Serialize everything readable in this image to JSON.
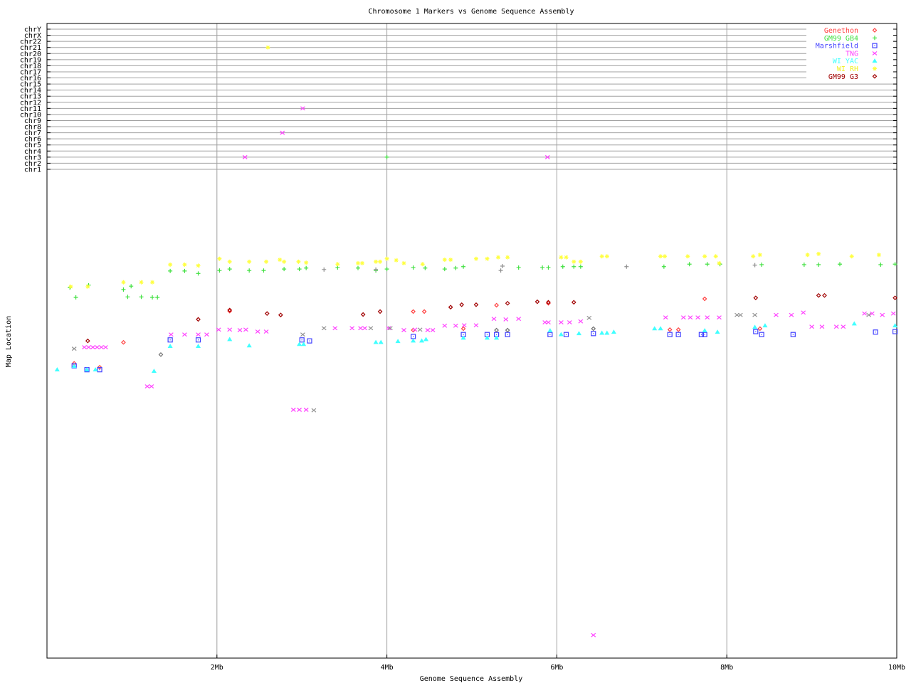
{
  "chart_data": {
    "type": "scatter",
    "title": "Chromosome 1 Markers vs Genome Sequence Assembly",
    "xlabel": "Genome Sequence Assembly",
    "ylabel": "Map Location",
    "xlim": [
      0,
      10
    ],
    "x_unit": "Mb",
    "x_ticks": [
      {
        "value": 2,
        "label": "2Mb"
      },
      {
        "value": 4,
        "label": "4Mb"
      },
      {
        "value": 6,
        "label": "6Mb"
      },
      {
        "value": 8,
        "label": "8Mb"
      },
      {
        "value": 10,
        "label": "10Mb"
      }
    ],
    "chromosome_ticks": [
      "chrY",
      "chrX",
      "chr22",
      "chr21",
      "chr20",
      "chr19",
      "chr18",
      "chr17",
      "chr16",
      "chr15",
      "chr14",
      "chr13",
      "chr12",
      "chr11",
      "chr10",
      "chr9",
      "chr8",
      "chr7",
      "chr6",
      "chr5",
      "chr4",
      "chr3",
      "chr2",
      "chr1"
    ],
    "map_location_range": [
      0,
      100
    ],
    "grid": true,
    "legend_position": "top-right",
    "series": [
      {
        "name": "Genethon",
        "color": "#ff4040",
        "marker": "diamond",
        "points": [
          [
            0.32,
            39.7
          ],
          [
            0.62,
            40.5
          ],
          [
            0.9,
            35.4
          ],
          [
            2.15,
            29.0
          ],
          [
            4.31,
            32.9
          ],
          [
            4.31,
            29.1
          ],
          [
            4.44,
            29.1
          ],
          [
            4.9,
            32.6
          ],
          [
            5.29,
            27.8
          ],
          [
            5.9,
            27.4
          ],
          [
            7.33,
            32.8
          ],
          [
            7.43,
            32.8
          ],
          [
            7.74,
            26.5
          ],
          [
            8.39,
            32.6
          ]
        ],
        "other_chromosomes": []
      },
      {
        "name": "GM99 GB4",
        "color": "#40e040",
        "marker": "plus",
        "points": [
          [
            0.27,
            24.2
          ],
          [
            0.34,
            26.2
          ],
          [
            0.49,
            23.7
          ],
          [
            0.9,
            24.6
          ],
          [
            0.95,
            26.1
          ],
          [
            0.99,
            23.9
          ],
          [
            1.11,
            26.1
          ],
          [
            1.24,
            26.2
          ],
          [
            1.3,
            26.2
          ],
          [
            1.45,
            20.8
          ],
          [
            1.62,
            20.8
          ],
          [
            1.78,
            21.3
          ],
          [
            2.03,
            20.7
          ],
          [
            2.15,
            20.4
          ],
          [
            2.38,
            20.7
          ],
          [
            2.55,
            20.7
          ],
          [
            2.79,
            20.4
          ],
          [
            2.97,
            20.4
          ],
          [
            3.05,
            20.2
          ],
          [
            3.42,
            20.1
          ],
          [
            3.66,
            20.2
          ],
          [
            3.87,
            20.7
          ],
          [
            4.0,
            20.4
          ],
          [
            4.31,
            20.1
          ],
          [
            4.45,
            20.2
          ],
          [
            4.68,
            20.4
          ],
          [
            4.81,
            20.2
          ],
          [
            4.9,
            19.9
          ],
          [
            5.55,
            20.1
          ],
          [
            5.83,
            20.1
          ],
          [
            5.9,
            20.1
          ],
          [
            6.07,
            19.9
          ],
          [
            6.2,
            19.9
          ],
          [
            6.28,
            19.9
          ],
          [
            7.26,
            19.9
          ],
          [
            7.56,
            19.4
          ],
          [
            7.77,
            19.4
          ],
          [
            7.92,
            19.4
          ],
          [
            8.41,
            19.5
          ],
          [
            8.91,
            19.5
          ],
          [
            9.08,
            19.5
          ],
          [
            9.33,
            19.4
          ],
          [
            9.81,
            19.5
          ],
          [
            9.98,
            19.4
          ]
        ],
        "other_chromosomes": [
          {
            "x": 4.0,
            "chr": "chr3"
          }
        ]
      },
      {
        "name": "Marshfield",
        "color": "#4040ff",
        "marker": "square",
        "points": [
          [
            0.32,
            40.2
          ],
          [
            0.47,
            41.0
          ],
          [
            0.62,
            41.0
          ],
          [
            1.45,
            34.9
          ],
          [
            1.78,
            34.9
          ],
          [
            3.0,
            34.9
          ],
          [
            3.09,
            35.1
          ],
          [
            4.31,
            34.2
          ],
          [
            4.9,
            33.8
          ],
          [
            5.18,
            33.8
          ],
          [
            5.29,
            33.8
          ],
          [
            5.42,
            33.8
          ],
          [
            5.92,
            33.8
          ],
          [
            6.11,
            33.8
          ],
          [
            6.43,
            33.6
          ],
          [
            7.33,
            33.8
          ],
          [
            7.43,
            33.8
          ],
          [
            7.7,
            33.8
          ],
          [
            7.74,
            33.8
          ],
          [
            8.34,
            33.2
          ],
          [
            8.41,
            33.8
          ],
          [
            8.78,
            33.8
          ],
          [
            9.75,
            33.3
          ],
          [
            9.98,
            33.2
          ]
        ],
        "other_chromosomes": []
      },
      {
        "name": "TNG",
        "color": "#ff40ff",
        "marker": "cross",
        "points": [
          [
            0.44,
            36.4
          ],
          [
            0.49,
            36.4
          ],
          [
            0.54,
            36.4
          ],
          [
            0.59,
            36.4
          ],
          [
            0.64,
            36.4
          ],
          [
            0.69,
            36.4
          ],
          [
            1.18,
            44.4
          ],
          [
            1.23,
            44.4
          ],
          [
            1.46,
            33.8
          ],
          [
            1.62,
            33.8
          ],
          [
            1.78,
            33.8
          ],
          [
            1.88,
            33.8
          ],
          [
            2.02,
            32.8
          ],
          [
            2.15,
            32.8
          ],
          [
            2.27,
            32.9
          ],
          [
            2.34,
            32.8
          ],
          [
            2.48,
            33.2
          ],
          [
            2.58,
            33.2
          ],
          [
            2.9,
            49.2
          ],
          [
            2.97,
            49.2
          ],
          [
            3.05,
            49.2
          ],
          [
            3.39,
            32.5
          ],
          [
            3.59,
            32.5
          ],
          [
            3.69,
            32.5
          ],
          [
            3.74,
            32.5
          ],
          [
            4.02,
            32.5
          ],
          [
            4.2,
            32.9
          ],
          [
            4.33,
            32.8
          ],
          [
            4.48,
            32.9
          ],
          [
            4.54,
            32.9
          ],
          [
            4.68,
            32.0
          ],
          [
            4.81,
            32.0
          ],
          [
            4.91,
            31.9
          ],
          [
            5.05,
            31.9
          ],
          [
            5.26,
            30.6
          ],
          [
            5.4,
            30.7
          ],
          [
            5.55,
            30.6
          ],
          [
            5.86,
            31.3
          ],
          [
            5.9,
            31.3
          ],
          [
            6.05,
            31.3
          ],
          [
            6.15,
            31.3
          ],
          [
            6.28,
            31.1
          ],
          [
            6.43,
            95.3
          ],
          [
            7.28,
            30.3
          ],
          [
            7.49,
            30.3
          ],
          [
            7.57,
            30.3
          ],
          [
            7.66,
            30.3
          ],
          [
            7.77,
            30.3
          ],
          [
            7.91,
            30.3
          ],
          [
            8.58,
            29.8
          ],
          [
            8.76,
            29.8
          ],
          [
            8.9,
            29.3
          ],
          [
            9.0,
            32.2
          ],
          [
            9.12,
            32.2
          ],
          [
            9.29,
            32.2
          ],
          [
            9.37,
            32.2
          ],
          [
            9.62,
            29.5
          ],
          [
            9.71,
            29.5
          ],
          [
            9.83,
            29.8
          ],
          [
            9.96,
            29.5
          ]
        ],
        "other_chromosomes": [
          {
            "x": 2.33,
            "chr": "chr3"
          },
          {
            "x": 2.77,
            "chr": "chr7"
          },
          {
            "x": 3.01,
            "chr": "chr11"
          },
          {
            "x": 5.89,
            "chr": "chr3"
          }
        ]
      },
      {
        "name": "WI YAC",
        "color": "#40ffff",
        "marker": "triangle",
        "points": [
          [
            0.12,
            41.0
          ],
          [
            0.32,
            40.3
          ],
          [
            0.47,
            41.0
          ],
          [
            0.57,
            41.0
          ],
          [
            1.26,
            41.3
          ],
          [
            1.45,
            36.2
          ],
          [
            1.78,
            36.2
          ],
          [
            2.15,
            34.8
          ],
          [
            2.38,
            36.1
          ],
          [
            2.97,
            35.8
          ],
          [
            3.02,
            35.8
          ],
          [
            3.87,
            35.4
          ],
          [
            3.93,
            35.4
          ],
          [
            4.13,
            35.2
          ],
          [
            4.31,
            35.1
          ],
          [
            4.41,
            35.1
          ],
          [
            4.46,
            34.8
          ],
          [
            4.9,
            34.5
          ],
          [
            5.18,
            34.5
          ],
          [
            5.29,
            34.5
          ],
          [
            5.92,
            33.0
          ],
          [
            6.05,
            33.8
          ],
          [
            6.26,
            33.6
          ],
          [
            6.53,
            33.5
          ],
          [
            6.59,
            33.5
          ],
          [
            6.67,
            33.3
          ],
          [
            7.15,
            32.6
          ],
          [
            7.22,
            32.6
          ],
          [
            7.74,
            33.0
          ],
          [
            7.89,
            33.3
          ],
          [
            8.33,
            32.3
          ],
          [
            8.45,
            32.0
          ],
          [
            9.5,
            31.6
          ],
          [
            9.98,
            32.0
          ]
        ],
        "other_chromosomes": []
      },
      {
        "name": "WI RH",
        "color": "#ffff40",
        "marker": "asterisk",
        "points": [
          [
            0.28,
            24.0
          ],
          [
            0.48,
            24.0
          ],
          [
            0.9,
            23.1
          ],
          [
            1.11,
            23.1
          ],
          [
            1.24,
            23.1
          ],
          [
            1.45,
            19.5
          ],
          [
            1.62,
            19.5
          ],
          [
            1.78,
            19.7
          ],
          [
            2.03,
            18.3
          ],
          [
            2.15,
            18.9
          ],
          [
            2.38,
            18.9
          ],
          [
            2.58,
            18.9
          ],
          [
            2.74,
            18.5
          ],
          [
            2.79,
            18.9
          ],
          [
            2.96,
            18.9
          ],
          [
            3.05,
            19.1
          ],
          [
            3.42,
            19.4
          ],
          [
            3.66,
            19.2
          ],
          [
            3.71,
            19.2
          ],
          [
            3.87,
            18.9
          ],
          [
            3.92,
            18.9
          ],
          [
            4.0,
            18.3
          ],
          [
            4.11,
            18.6
          ],
          [
            4.2,
            19.2
          ],
          [
            4.42,
            19.4
          ],
          [
            4.68,
            18.5
          ],
          [
            4.75,
            18.5
          ],
          [
            5.05,
            18.3
          ],
          [
            5.18,
            18.3
          ],
          [
            5.31,
            18.0
          ],
          [
            5.42,
            18.0
          ],
          [
            6.05,
            18.0
          ],
          [
            6.11,
            18.0
          ],
          [
            6.2,
            18.9
          ],
          [
            6.28,
            18.9
          ],
          [
            6.53,
            17.8
          ],
          [
            6.59,
            17.8
          ],
          [
            7.22,
            17.8
          ],
          [
            7.27,
            17.8
          ],
          [
            7.54,
            17.8
          ],
          [
            7.74,
            17.8
          ],
          [
            7.87,
            17.8
          ],
          [
            7.91,
            19.2
          ],
          [
            8.31,
            17.8
          ],
          [
            8.39,
            17.5
          ],
          [
            8.95,
            17.5
          ],
          [
            9.08,
            17.3
          ],
          [
            9.47,
            17.8
          ],
          [
            9.79,
            17.5
          ]
        ],
        "other_chromosomes": [
          {
            "x": 2.6,
            "chr": "chr21"
          }
        ]
      },
      {
        "name": "GM99 G3",
        "color": "#a00000",
        "marker": "diamond",
        "points": [
          [
            0.48,
            35.1
          ],
          [
            1.78,
            30.7
          ],
          [
            2.15,
            28.8
          ],
          [
            2.59,
            29.5
          ],
          [
            2.75,
            29.8
          ],
          [
            3.72,
            29.7
          ],
          [
            3.92,
            29.1
          ],
          [
            4.75,
            28.2
          ],
          [
            4.88,
            27.7
          ],
          [
            5.05,
            27.7
          ],
          [
            5.42,
            27.4
          ],
          [
            5.77,
            27.1
          ],
          [
            5.9,
            27.2
          ],
          [
            6.2,
            27.2
          ],
          [
            8.34,
            26.3
          ],
          [
            9.08,
            25.8
          ],
          [
            9.15,
            25.8
          ],
          [
            9.98,
            26.3
          ]
        ],
        "other_chromosomes": []
      },
      {
        "name": "",
        "color": "#909090",
        "marker": "cross",
        "points": [
          [
            0.32,
            36.7
          ],
          [
            3.14,
            49.3
          ],
          [
            3.01,
            33.8
          ],
          [
            3.26,
            32.5
          ],
          [
            3.81,
            32.5
          ],
          [
            4.04,
            32.5
          ],
          [
            4.39,
            32.8
          ],
          [
            6.38,
            30.4
          ],
          [
            8.12,
            29.8
          ],
          [
            8.16,
            29.8
          ],
          [
            8.33,
            29.8
          ],
          [
            9.67,
            29.8
          ]
        ],
        "other_chromosomes": []
      },
      {
        "name": "",
        "color": "#909090",
        "marker": "plus",
        "points": [
          [
            3.26,
            20.5
          ],
          [
            3.87,
            20.5
          ],
          [
            5.34,
            20.7
          ],
          [
            5.36,
            19.8
          ],
          [
            6.82,
            19.9
          ],
          [
            8.33,
            19.6
          ]
        ],
        "other_chromosomes": []
      },
      {
        "name": "",
        "color": "#707070",
        "marker": "diamond",
        "points": [
          [
            1.34,
            37.9
          ],
          [
            5.29,
            32.9
          ],
          [
            5.42,
            32.9
          ],
          [
            6.43,
            32.6
          ]
        ],
        "other_chromosomes": []
      }
    ]
  }
}
